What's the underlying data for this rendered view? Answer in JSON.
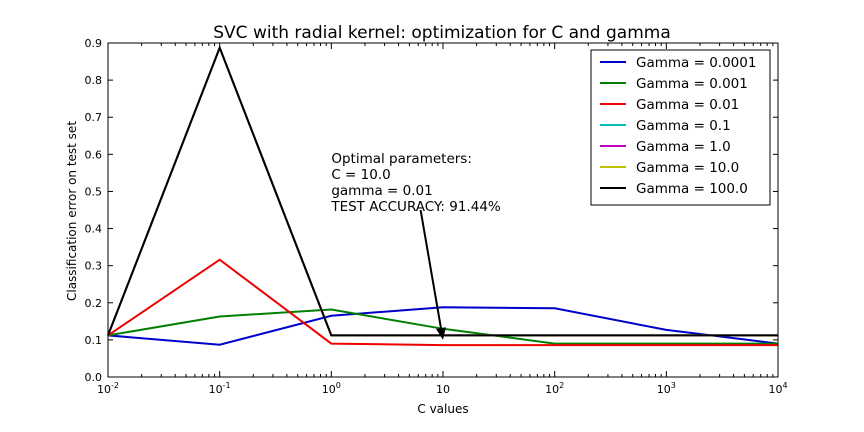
{
  "chart_data": {
    "type": "line",
    "title": "SVC with radial kernel: optimization for C and gamma",
    "xlabel": "C values",
    "ylabel": "Classification error on test set",
    "x_scale": "log",
    "xlim": [
      0.01,
      10000
    ],
    "ylim": [
      0.0,
      0.9
    ],
    "x": [
      0.01,
      0.1,
      1,
      10,
      100,
      1000,
      10000
    ],
    "x_ticks": [
      {
        "base": "10",
        "exp": "-2",
        "value": 0.01
      },
      {
        "base": "10",
        "exp": "-1",
        "value": 0.1
      },
      {
        "base": "10",
        "exp": "0",
        "value": 1
      },
      {
        "base": "10",
        "exp": "",
        "value": 10
      },
      {
        "base": "10",
        "exp": "2",
        "value": 100
      },
      {
        "base": "10",
        "exp": "3",
        "value": 1000
      },
      {
        "base": "10",
        "exp": "4",
        "value": 10000
      }
    ],
    "y_ticks": [
      "0.0",
      "0.1",
      "0.2",
      "0.3",
      "0.4",
      "0.5",
      "0.6",
      "0.7",
      "0.8",
      "0.9"
    ],
    "grid": false,
    "legend_position": "top-right",
    "series": [
      {
        "name": "Gamma = 0.0001",
        "color": "#0000cc",
        "values": [
          0.112,
          0.087,
          0.165,
          0.188,
          0.185,
          0.127,
          0.09
        ]
      },
      {
        "name": "Gamma = 0.001",
        "color": "#008000",
        "values": [
          0.112,
          0.163,
          0.182,
          0.13,
          0.09,
          0.09,
          0.09
        ]
      },
      {
        "name": "Gamma = 0.01",
        "color": "#ee0000",
        "values": [
          0.112,
          0.316,
          0.09,
          0.086,
          0.086,
          0.086,
          0.086
        ]
      },
      {
        "name": "Gamma = 0.1",
        "color": "#00bfbf",
        "values": [
          0.112,
          0.887,
          0.112,
          0.112,
          0.112,
          0.112,
          0.112
        ]
      },
      {
        "name": "Gamma = 1.0",
        "color": "#bf00bf",
        "values": [
          0.112,
          0.887,
          0.112,
          0.112,
          0.112,
          0.112,
          0.112
        ]
      },
      {
        "name": "Gamma = 10.0",
        "color": "#bfbf00",
        "values": [
          0.112,
          0.887,
          0.112,
          0.112,
          0.112,
          0.112,
          0.112
        ]
      },
      {
        "name": "Gamma = 100.0",
        "color": "#000000",
        "values": [
          0.112,
          0.887,
          0.112,
          0.112,
          0.112,
          0.112,
          0.112
        ]
      }
    ],
    "annotation": {
      "lines": [
        "Optimal parameters:",
        "C = 10.0",
        "gamma = 0.01",
        "TEST ACCURACY: 91.44%"
      ],
      "text_at": {
        "x": 1,
        "y": 0.62
      },
      "arrow_from": {
        "x": 6.3,
        "y": 0.45
      },
      "arrow_to": {
        "x": 10,
        "y": 0.1
      }
    }
  }
}
